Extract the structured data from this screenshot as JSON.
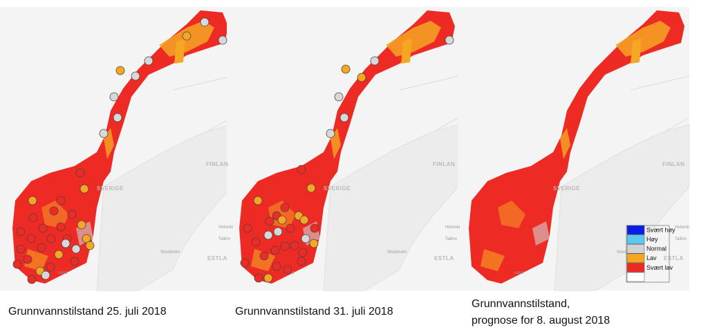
{
  "panels": [
    {
      "caption": [
        "Grunnvannstilstand 25. juli 2018"
      ],
      "map_labels": [
        "SVERIGE",
        "FINLAN",
        "Helsinki",
        "Tallinn",
        "Stockholm",
        "ESTLA",
        "rland"
      ]
    },
    {
      "caption": [
        "Grunnvannstilstand 31. juli 2018"
      ],
      "map_labels": [
        "SVERIGE",
        "FINLAN",
        "Helsinki",
        "Tallinn",
        "Stockholm",
        "ESTLA",
        "rland"
      ]
    },
    {
      "caption": [
        "Grunnvannstilstand,",
        "prognose for 8. august 2018"
      ],
      "map_labels": [
        "SVERIGE",
        "FINLAN",
        "Helsinki",
        "Tallinn",
        "Stockholm",
        "ESTLA",
        "rland"
      ]
    }
  ],
  "legend": [
    {
      "label": "Svært høy",
      "color": "#0a1ee6"
    },
    {
      "label": "Høy",
      "color": "#5ac8f0"
    },
    {
      "label": "Normal",
      "color": "#d2d2d2"
    },
    {
      "label": "Lav",
      "color": "#f5a623"
    },
    {
      "label": "Svært lav",
      "color": "#ee2a24"
    },
    {
      "color": "#ffffff"
    }
  ]
}
